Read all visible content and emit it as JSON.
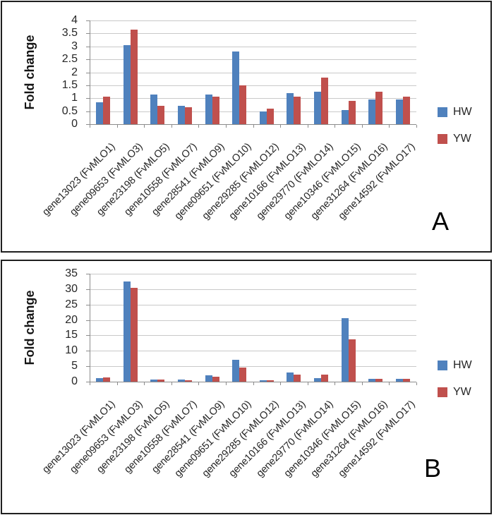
{
  "colors": {
    "hw": "#4F81BD",
    "yw": "#C0504D",
    "gridline": "#C9C9C9",
    "axis": "#8C8C8C",
    "text": "#262626",
    "panel_border": "#1F1F1F"
  },
  "chart_data": [
    {
      "type": "bar",
      "panel_label": "A",
      "ylabel": "Fold change",
      "ylim": [
        0,
        4
      ],
      "ytick_step": 0.5,
      "yticks": [
        0,
        0.5,
        1,
        1.5,
        2,
        2.5,
        3,
        3.5,
        4
      ],
      "grid": true,
      "legend_position": "right",
      "categories": [
        "gene13023 (FvMLO1)",
        "gene09653 (FvMLO3)",
        "gene23198 (FvMLO5)",
        "gene10558 (FvMLO7)",
        "gene28541 (FvMLO9)",
        "gene09651 (FvMLO10)",
        "gene29285 (FvMLO12)",
        "gene10166 (FvMLO13)",
        "gene29770 (FvMLO14)",
        "gene10346 (FvMLO15)",
        "gene31264 (FvMLO16)",
        "gene14592 (FvMLO17)"
      ],
      "series": [
        {
          "name": "HW",
          "color": "#4F81BD",
          "values": [
            0.85,
            3.05,
            1.15,
            0.7,
            1.15,
            2.8,
            0.5,
            1.2,
            1.25,
            0.55,
            0.95,
            0.95
          ]
        },
        {
          "name": "YW",
          "color": "#C0504D",
          "values": [
            1.05,
            3.65,
            0.7,
            0.65,
            1.05,
            1.5,
            0.6,
            1.05,
            1.8,
            0.9,
            1.25,
            1.05
          ]
        }
      ]
    },
    {
      "type": "bar",
      "panel_label": "B",
      "ylabel": "Fold change",
      "ylim": [
        0,
        35
      ],
      "ytick_step": 5,
      "yticks": [
        0,
        5,
        10,
        15,
        20,
        25,
        30,
        35
      ],
      "grid": true,
      "legend_position": "right",
      "categories": [
        "gene13023 (FvMLO1)",
        "gene09653 (FvMLO3)",
        "gene23198 (FvMLO5)",
        "gene10558 (FvMLO7)",
        "gene28541 (FvMLO9)",
        "gene09651 (FvMLO10)",
        "gene29285 (FvMLO12)",
        "gene10166 (FvMLO13)",
        "gene29770 (FvMLO14)",
        "gene10346 (FvMLO15)",
        "gene31264 (FvMLO16)",
        "gene14592 (FvMLO17)"
      ],
      "series": [
        {
          "name": "HW",
          "color": "#4F81BD",
          "values": [
            1.2,
            32.5,
            0.8,
            0.6,
            2.1,
            7.2,
            0.4,
            3.0,
            1.2,
            20.5,
            0.9,
            0.9
          ]
        },
        {
          "name": "YW",
          "color": "#C0504D",
          "values": [
            1.4,
            30.5,
            0.6,
            0.4,
            1.6,
            4.6,
            0.5,
            2.3,
            2.4,
            13.7,
            0.9,
            0.9
          ]
        }
      ]
    }
  ]
}
